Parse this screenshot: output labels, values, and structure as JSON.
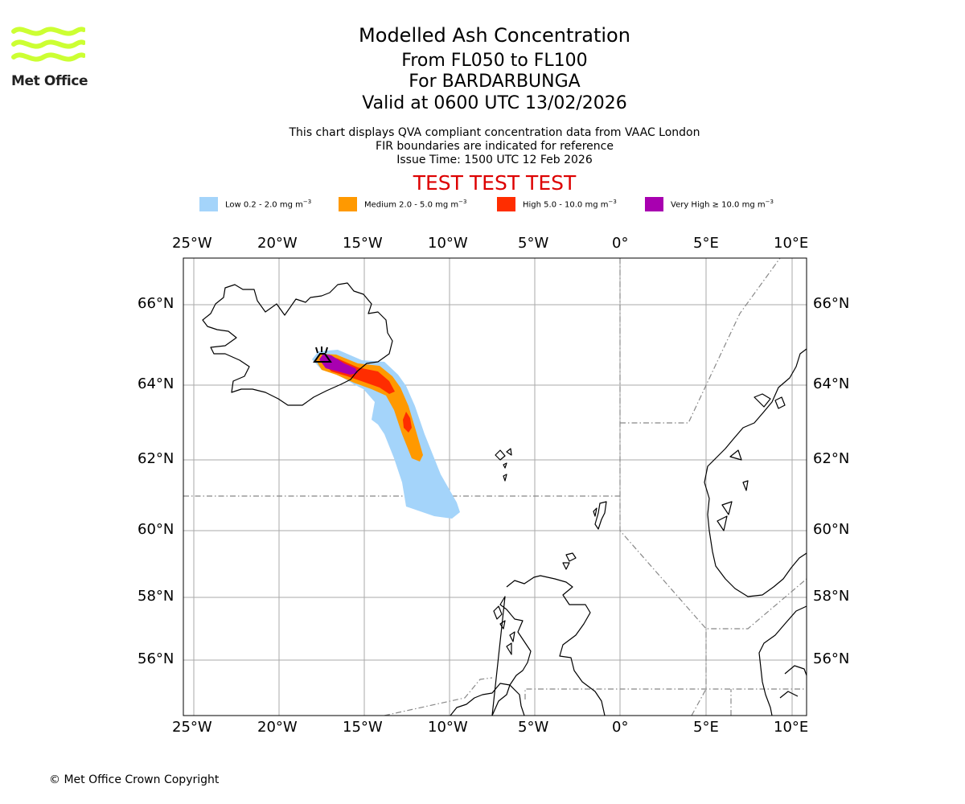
{
  "header": {
    "title": "Modelled Ash Concentration",
    "levels": "From FL050 to FL100",
    "volcano": "For BARDARBUNGA",
    "valid_time": "Valid at 0600 UTC 13/02/2026",
    "note_1": "This chart displays QVA compliant concentration data from VAAC London",
    "note_2": "FIR boundaries are indicated for reference",
    "issue_time": "Issue Time: 1500 UTC 12 Feb 2026",
    "test_banner": "TEST TEST TEST"
  },
  "logo": {
    "text": "Met Office",
    "color": "#ccff33"
  },
  "legend": [
    {
      "label": "Low 0.2 - 2.0 mg m",
      "sup": "−3",
      "color": "#a4d4fa"
    },
    {
      "label": "Medium 2.0 - 5.0 mg m",
      "sup": "−3",
      "color": "#ff9900"
    },
    {
      "label": "High 5.0 - 10.0 mg m",
      "sup": "−3",
      "color": "#ff2d00"
    },
    {
      "label": "Very High  ≥  10.0 mg m",
      "sup": "−3",
      "color": "#a800b0"
    }
  ],
  "map": {
    "lon_ticks": [
      "25°W",
      "20°W",
      "15°W",
      "10°W",
      "5°W",
      "0°",
      "5°E",
      "10°E"
    ],
    "lat_ticks": [
      "66°N",
      "64°N",
      "62°N",
      "60°N",
      "58°N",
      "56°N"
    ],
    "gridline_color": "#aaaaaa",
    "fir_color": "#888888",
    "coast_color": "#000000"
  },
  "footer": {
    "copyright": "© Met Office Crown Copyright"
  }
}
